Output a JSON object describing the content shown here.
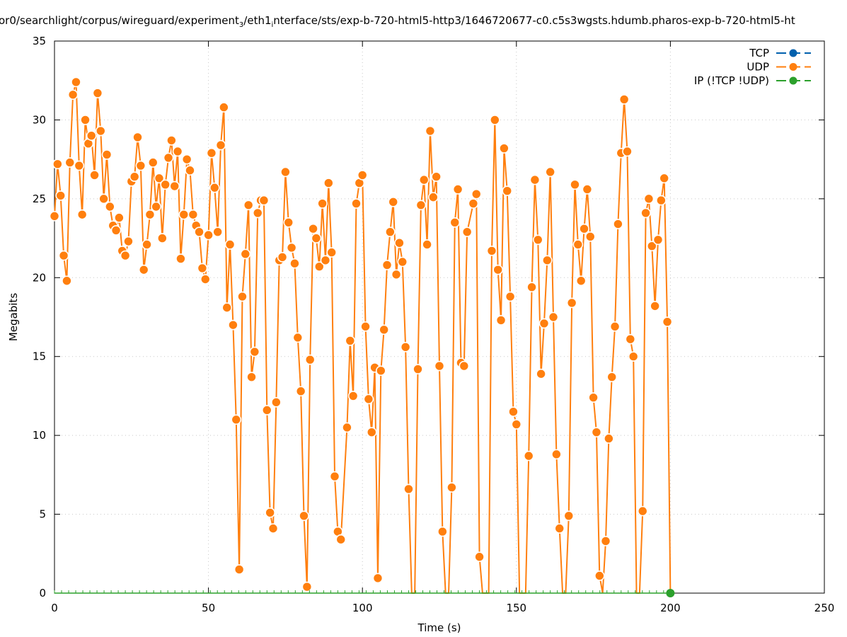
{
  "title": {
    "part1": "or0/searchlight/corpus/wireguard/experiment",
    "sub1": "3",
    "part2": "/eth1",
    "sub2": "i",
    "part3": "nterface/sts/exp-b-720-html5-http3/1646720677-c0.c5s3wgsts.hdumb.pharos-exp-b-720-html5-ht"
  },
  "chart_data": {
    "type": "line",
    "xlabel": "Time (s)",
    "ylabel": "Megabits",
    "xlim": [
      0,
      250
    ],
    "ylim": [
      0,
      35
    ],
    "xticks": [
      "0",
      "50",
      "100",
      "150",
      "200",
      "250"
    ],
    "yticks": [
      "0",
      "5",
      "10",
      "15",
      "20",
      "25",
      "30",
      "35"
    ],
    "grid": true,
    "legend_position": "top-right",
    "series": [
      {
        "name": "TCP",
        "color": "#0060ad",
        "x": [],
        "y": []
      },
      {
        "name": "UDP",
        "color": "#ff7f0e",
        "x": [
          0,
          1,
          2,
          3,
          4,
          5,
          6,
          7,
          8,
          9,
          10,
          11,
          12,
          13,
          14,
          15,
          16,
          17,
          18,
          19,
          20,
          21,
          22,
          23,
          24,
          25,
          26,
          27,
          28,
          29,
          30,
          31,
          32,
          33,
          34,
          35,
          36,
          37,
          38,
          39,
          40,
          41,
          42,
          43,
          44,
          45,
          46,
          47,
          48,
          49,
          50,
          51,
          52,
          53,
          54,
          55,
          56,
          57,
          58,
          59,
          60,
          61,
          62,
          63,
          64,
          65,
          66,
          67,
          68,
          69,
          70,
          71,
          72,
          73,
          74,
          75,
          76,
          77,
          78,
          79,
          80,
          81,
          82,
          83,
          84,
          85,
          86,
          87,
          88,
          89,
          90,
          91,
          92,
          93,
          95,
          96,
          97,
          98,
          99,
          100,
          101,
          102,
          103,
          104,
          105,
          106,
          107,
          108,
          109,
          110,
          111,
          112,
          113,
          114,
          115,
          116,
          117,
          118,
          119,
          120,
          121,
          122,
          123,
          124,
          125,
          126,
          127,
          128,
          129,
          130,
          131,
          132,
          133,
          134,
          136,
          137,
          138,
          139,
          140,
          141,
          142,
          143,
          144,
          145,
          146,
          147,
          148,
          149,
          150,
          151,
          152,
          153,
          154,
          155,
          156,
          157,
          158,
          159,
          160,
          161,
          162,
          163,
          164,
          165,
          166,
          167,
          168,
          169,
          170,
          171,
          172,
          173,
          174,
          175,
          176,
          177,
          178,
          179,
          180,
          181,
          182,
          183,
          184,
          185,
          186,
          187,
          188,
          189,
          190,
          191,
          192,
          193,
          194,
          195,
          196,
          197,
          198,
          199,
          200
        ],
        "y": [
          23.9,
          27.2,
          25.2,
          21.4,
          19.8,
          27.3,
          31.6,
          32.4,
          27.1,
          24.0,
          30.0,
          28.5,
          29.0,
          26.5,
          31.7,
          29.3,
          25.0,
          27.8,
          24.5,
          23.3,
          23.0,
          23.8,
          21.7,
          21.4,
          22.3,
          26.1,
          26.4,
          28.9,
          27.1,
          20.5,
          22.1,
          24.0,
          27.3,
          24.5,
          26.3,
          22.5,
          25.9,
          27.6,
          28.7,
          25.8,
          28.0,
          21.2,
          24.0,
          27.5,
          26.8,
          24.0,
          23.3,
          22.9,
          20.6,
          19.9,
          22.7,
          27.9,
          25.7,
          22.9,
          28.4,
          30.8,
          18.1,
          22.1,
          17.0,
          11.0,
          1.5,
          18.8,
          21.5,
          24.6,
          13.7,
          15.3,
          24.1,
          24.9,
          24.9,
          11.6,
          5.1,
          4.1,
          12.1,
          21.1,
          21.3,
          26.7,
          23.5,
          21.9,
          20.9,
          16.2,
          12.8,
          4.9,
          0.4,
          14.8,
          23.1,
          22.5,
          20.7,
          24.7,
          21.1,
          26.0,
          21.6,
          7.4,
          3.9,
          3.4,
          10.5,
          16.0,
          12.5,
          24.7,
          26.0,
          26.5,
          16.9,
          12.3,
          10.2,
          14.3,
          0.95,
          14.1,
          16.7,
          20.8,
          22.9,
          24.8,
          20.2,
          22.2,
          21.0,
          15.6,
          6.6,
          0,
          0,
          14.2,
          24.6,
          26.2,
          22.1,
          29.3,
          25.1,
          26.4,
          14.4,
          3.9,
          0,
          0,
          6.7,
          23.5,
          25.6,
          14.6,
          14.4,
          22.9,
          24.7,
          25.3,
          2.3,
          0,
          0,
          0,
          21.7,
          30.0,
          20.5,
          17.3,
          28.2,
          25.5,
          18.8,
          11.5,
          10.7,
          0,
          0,
          0,
          8.7,
          19.4,
          26.2,
          22.4,
          13.9,
          17.1,
          21.1,
          26.7,
          17.5,
          8.8,
          4.1,
          0,
          0,
          4.9,
          18.4,
          25.9,
          22.1,
          19.8,
          23.1,
          25.6,
          22.6,
          12.4,
          10.2,
          1.1,
          0,
          3.3,
          9.8,
          13.7,
          16.9,
          23.4,
          27.9,
          31.3,
          28.0,
          16.1,
          15.0,
          0,
          0,
          5.2,
          24.1,
          25.0,
          22.0,
          18.2,
          22.4,
          24.9,
          26.3,
          17.2,
          0
        ]
      },
      {
        "name": "IP (!TCP  !UDP)",
        "color": "#2ca02c",
        "x": [
          0,
          200
        ],
        "y": [
          0,
          0
        ]
      }
    ]
  }
}
